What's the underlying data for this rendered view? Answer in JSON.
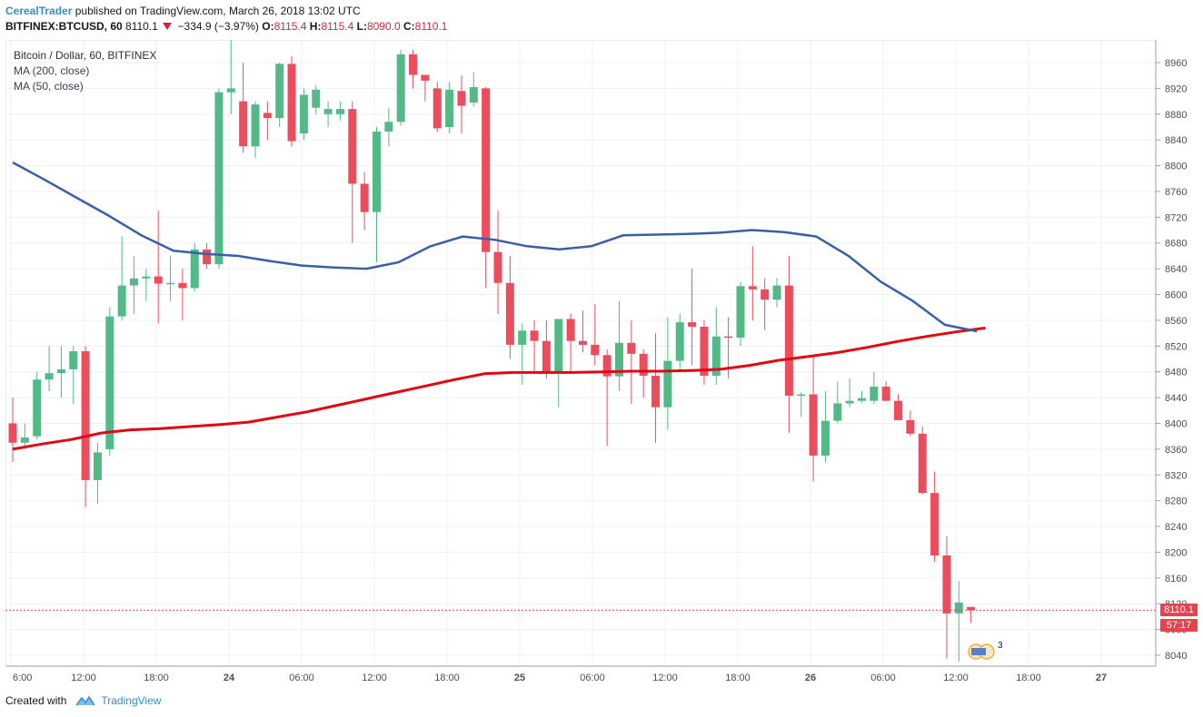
{
  "header": {
    "author": "CerealTrader",
    "published_text": "published on TradingView.com, March 26, 2018 13:02 UTC",
    "symbol": "BITFINEX:BTCUSD, 60",
    "last": "8110.1",
    "change": "−334.9 (−3.97%)",
    "o_label": "O:",
    "o_value": "8115.4",
    "h_label": "H:",
    "h_value": "8115.4",
    "l_label": "L:",
    "l_value": "8090.0",
    "c_label": "C:",
    "c_value": "8110.1"
  },
  "legend": {
    "title": "Bitcoin / Dollar, 60, BITFINEX",
    "ma200": "MA (200, close)",
    "ma50": "MA (50, close)"
  },
  "price_tag": {
    "price": "8110.1",
    "countdown": "57:17"
  },
  "events_badge": "3",
  "footer": {
    "created_with": "Created with",
    "brand": "TradingView"
  },
  "colors": {
    "up": "#53b987",
    "down": "#eb4d5c",
    "ma200": "#e30613",
    "ma50": "#3a5ea8",
    "grid": "#eef0f3"
  },
  "chart_data": {
    "type": "candlestick",
    "x_labels": [
      "6:00",
      "12:00",
      "18:00",
      "24",
      "06:00",
      "12:00",
      "18:00",
      "25",
      "06:00",
      "12:00",
      "18:00",
      "26",
      "06:00",
      "12:00",
      "18:00",
      "27"
    ],
    "y_ticks": [
      8040,
      8080,
      8120,
      8160,
      8200,
      8240,
      8280,
      8320,
      8360,
      8400,
      8440,
      8480,
      8520,
      8560,
      8600,
      8640,
      8680,
      8720,
      8760,
      8800,
      8840,
      8880,
      8920,
      8960
    ],
    "ylim": [
      8020,
      8990
    ],
    "grid": true,
    "candles": [
      {
        "o": 8400,
        "h": 8440,
        "l": 8340,
        "c": 8370
      },
      {
        "o": 8370,
        "h": 8400,
        "l": 8360,
        "c": 8378
      },
      {
        "o": 8380,
        "h": 8480,
        "l": 8375,
        "c": 8468
      },
      {
        "o": 8468,
        "h": 8520,
        "l": 8450,
        "c": 8478
      },
      {
        "o": 8478,
        "h": 8520,
        "l": 8440,
        "c": 8484
      },
      {
        "o": 8484,
        "h": 8520,
        "l": 8430,
        "c": 8512
      },
      {
        "o": 8512,
        "h": 8520,
        "l": 8270,
        "c": 8312
      },
      {
        "o": 8312,
        "h": 8370,
        "l": 8275,
        "c": 8355
      },
      {
        "o": 8360,
        "h": 8580,
        "l": 8350,
        "c": 8566
      },
      {
        "o": 8566,
        "h": 8690,
        "l": 8560,
        "c": 8614
      },
      {
        "o": 8614,
        "h": 8660,
        "l": 8570,
        "c": 8625
      },
      {
        "o": 8625,
        "h": 8640,
        "l": 8590,
        "c": 8628
      },
      {
        "o": 8628,
        "h": 8730,
        "l": 8555,
        "c": 8617
      },
      {
        "o": 8617,
        "h": 8660,
        "l": 8590,
        "c": 8618
      },
      {
        "o": 8618,
        "h": 8640,
        "l": 8560,
        "c": 8610
      },
      {
        "o": 8610,
        "h": 8680,
        "l": 8605,
        "c": 8670
      },
      {
        "o": 8670,
        "h": 8680,
        "l": 8640,
        "c": 8647
      },
      {
        "o": 8647,
        "h": 8920,
        "l": 8640,
        "c": 8914
      },
      {
        "o": 8914,
        "h": 9010,
        "l": 8880,
        "c": 8920
      },
      {
        "o": 8900,
        "h": 8960,
        "l": 8820,
        "c": 8830
      },
      {
        "o": 8830,
        "h": 8900,
        "l": 8812,
        "c": 8895
      },
      {
        "o": 8882,
        "h": 8900,
        "l": 8840,
        "c": 8874
      },
      {
        "o": 8874,
        "h": 8960,
        "l": 8860,
        "c": 8958
      },
      {
        "o": 8958,
        "h": 8970,
        "l": 8830,
        "c": 8838
      },
      {
        "o": 8850,
        "h": 8920,
        "l": 8840,
        "c": 8910
      },
      {
        "o": 8890,
        "h": 8925,
        "l": 8880,
        "c": 8918
      },
      {
        "o": 8880,
        "h": 8900,
        "l": 8860,
        "c": 8888
      },
      {
        "o": 8880,
        "h": 8900,
        "l": 8870,
        "c": 8888
      },
      {
        "o": 8888,
        "h": 8900,
        "l": 8680,
        "c": 8772
      },
      {
        "o": 8772,
        "h": 8790,
        "l": 8700,
        "c": 8728
      },
      {
        "o": 8728,
        "h": 8860,
        "l": 8650,
        "c": 8853
      },
      {
        "o": 8853,
        "h": 8890,
        "l": 8830,
        "c": 8868
      },
      {
        "o": 8868,
        "h": 8980,
        "l": 8862,
        "c": 8973
      },
      {
        "o": 8973,
        "h": 8980,
        "l": 8920,
        "c": 8941
      },
      {
        "o": 8941,
        "h": 8940,
        "l": 8900,
        "c": 8932
      },
      {
        "o": 8920,
        "h": 8930,
        "l": 8852,
        "c": 8858
      },
      {
        "o": 8860,
        "h": 8930,
        "l": 8850,
        "c": 8918
      },
      {
        "o": 8916,
        "h": 8940,
        "l": 8850,
        "c": 8893
      },
      {
        "o": 8898,
        "h": 8945,
        "l": 8892,
        "c": 8922
      },
      {
        "o": 8920,
        "h": 8922,
        "l": 8610,
        "c": 8666
      },
      {
        "o": 8666,
        "h": 8730,
        "l": 8570,
        "c": 8618
      },
      {
        "o": 8618,
        "h": 8660,
        "l": 8500,
        "c": 8522
      },
      {
        "o": 8522,
        "h": 8555,
        "l": 8460,
        "c": 8544
      },
      {
        "o": 8544,
        "h": 8560,
        "l": 8480,
        "c": 8528
      },
      {
        "o": 8528,
        "h": 8560,
        "l": 8470,
        "c": 8478
      },
      {
        "o": 8478,
        "h": 8560,
        "l": 8425,
        "c": 8562
      },
      {
        "o": 8562,
        "h": 8570,
        "l": 8480,
        "c": 8528
      },
      {
        "o": 8528,
        "h": 8575,
        "l": 8510,
        "c": 8522
      },
      {
        "o": 8522,
        "h": 8585,
        "l": 8490,
        "c": 8506
      },
      {
        "o": 8506,
        "h": 8515,
        "l": 8365,
        "c": 8473
      },
      {
        "o": 8473,
        "h": 8590,
        "l": 8450,
        "c": 8525
      },
      {
        "o": 8525,
        "h": 8560,
        "l": 8430,
        "c": 8508
      },
      {
        "o": 8508,
        "h": 8515,
        "l": 8440,
        "c": 8474
      },
      {
        "o": 8474,
        "h": 8540,
        "l": 8370,
        "c": 8425
      },
      {
        "o": 8425,
        "h": 8565,
        "l": 8390,
        "c": 8497
      },
      {
        "o": 8497,
        "h": 8570,
        "l": 8480,
        "c": 8557
      },
      {
        "o": 8557,
        "h": 8640,
        "l": 8490,
        "c": 8550
      },
      {
        "o": 8550,
        "h": 8560,
        "l": 8460,
        "c": 8474
      },
      {
        "o": 8474,
        "h": 8580,
        "l": 8460,
        "c": 8535
      },
      {
        "o": 8535,
        "h": 8565,
        "l": 8470,
        "c": 8533
      },
      {
        "o": 8533,
        "h": 8620,
        "l": 8520,
        "c": 8613
      },
      {
        "o": 8613,
        "h": 8675,
        "l": 8560,
        "c": 8608
      },
      {
        "o": 8608,
        "h": 8625,
        "l": 8545,
        "c": 8592
      },
      {
        "o": 8592,
        "h": 8625,
        "l": 8580,
        "c": 8614
      },
      {
        "o": 8614,
        "h": 8660,
        "l": 8385,
        "c": 8443
      },
      {
        "o": 8443,
        "h": 8448,
        "l": 8410,
        "c": 8445
      },
      {
        "o": 8445,
        "h": 8505,
        "l": 8310,
        "c": 8350
      },
      {
        "o": 8350,
        "h": 8450,
        "l": 8340,
        "c": 8404
      },
      {
        "o": 8404,
        "h": 8465,
        "l": 8400,
        "c": 8431
      },
      {
        "o": 8431,
        "h": 8470,
        "l": 8425,
        "c": 8435
      },
      {
        "o": 8435,
        "h": 8450,
        "l": 8432,
        "c": 8439
      },
      {
        "o": 8435,
        "h": 8480,
        "l": 8430,
        "c": 8457
      },
      {
        "o": 8457,
        "h": 8465,
        "l": 8435,
        "c": 8435
      },
      {
        "o": 8435,
        "h": 8445,
        "l": 8405,
        "c": 8405
      },
      {
        "o": 8405,
        "h": 8420,
        "l": 8380,
        "c": 8384
      },
      {
        "o": 8384,
        "h": 8395,
        "l": 8290,
        "c": 8292
      },
      {
        "o": 8292,
        "h": 8325,
        "l": 8185,
        "c": 8195
      },
      {
        "o": 8195,
        "h": 8225,
        "l": 8035,
        "c": 8105
      },
      {
        "o": 8105,
        "h": 8155,
        "l": 8030,
        "c": 8122
      },
      {
        "o": 8115,
        "h": 8115,
        "l": 8090,
        "c": 8110
      }
    ],
    "ma200": [
      8360,
      8368,
      8375,
      8385,
      8390,
      8392,
      8395,
      8398,
      8402,
      8410,
      8418,
      8428,
      8438,
      8448,
      8458,
      8468,
      8477,
      8479,
      8479,
      8479,
      8480,
      8481,
      8481,
      8482,
      8484,
      8490,
      8498,
      8504,
      8510,
      8518,
      8527,
      8535,
      8542,
      8548
    ],
    "ma50": [
      8805,
      8778,
      8750,
      8722,
      8692,
      8668,
      8663,
      8660,
      8652,
      8645,
      8642,
      8640,
      8650,
      8675,
      8690,
      8685,
      8675,
      8670,
      8675,
      8692,
      8693,
      8694,
      8696,
      8700,
      8697,
      8690,
      8660,
      8620,
      8590,
      8553,
      8543
    ]
  }
}
